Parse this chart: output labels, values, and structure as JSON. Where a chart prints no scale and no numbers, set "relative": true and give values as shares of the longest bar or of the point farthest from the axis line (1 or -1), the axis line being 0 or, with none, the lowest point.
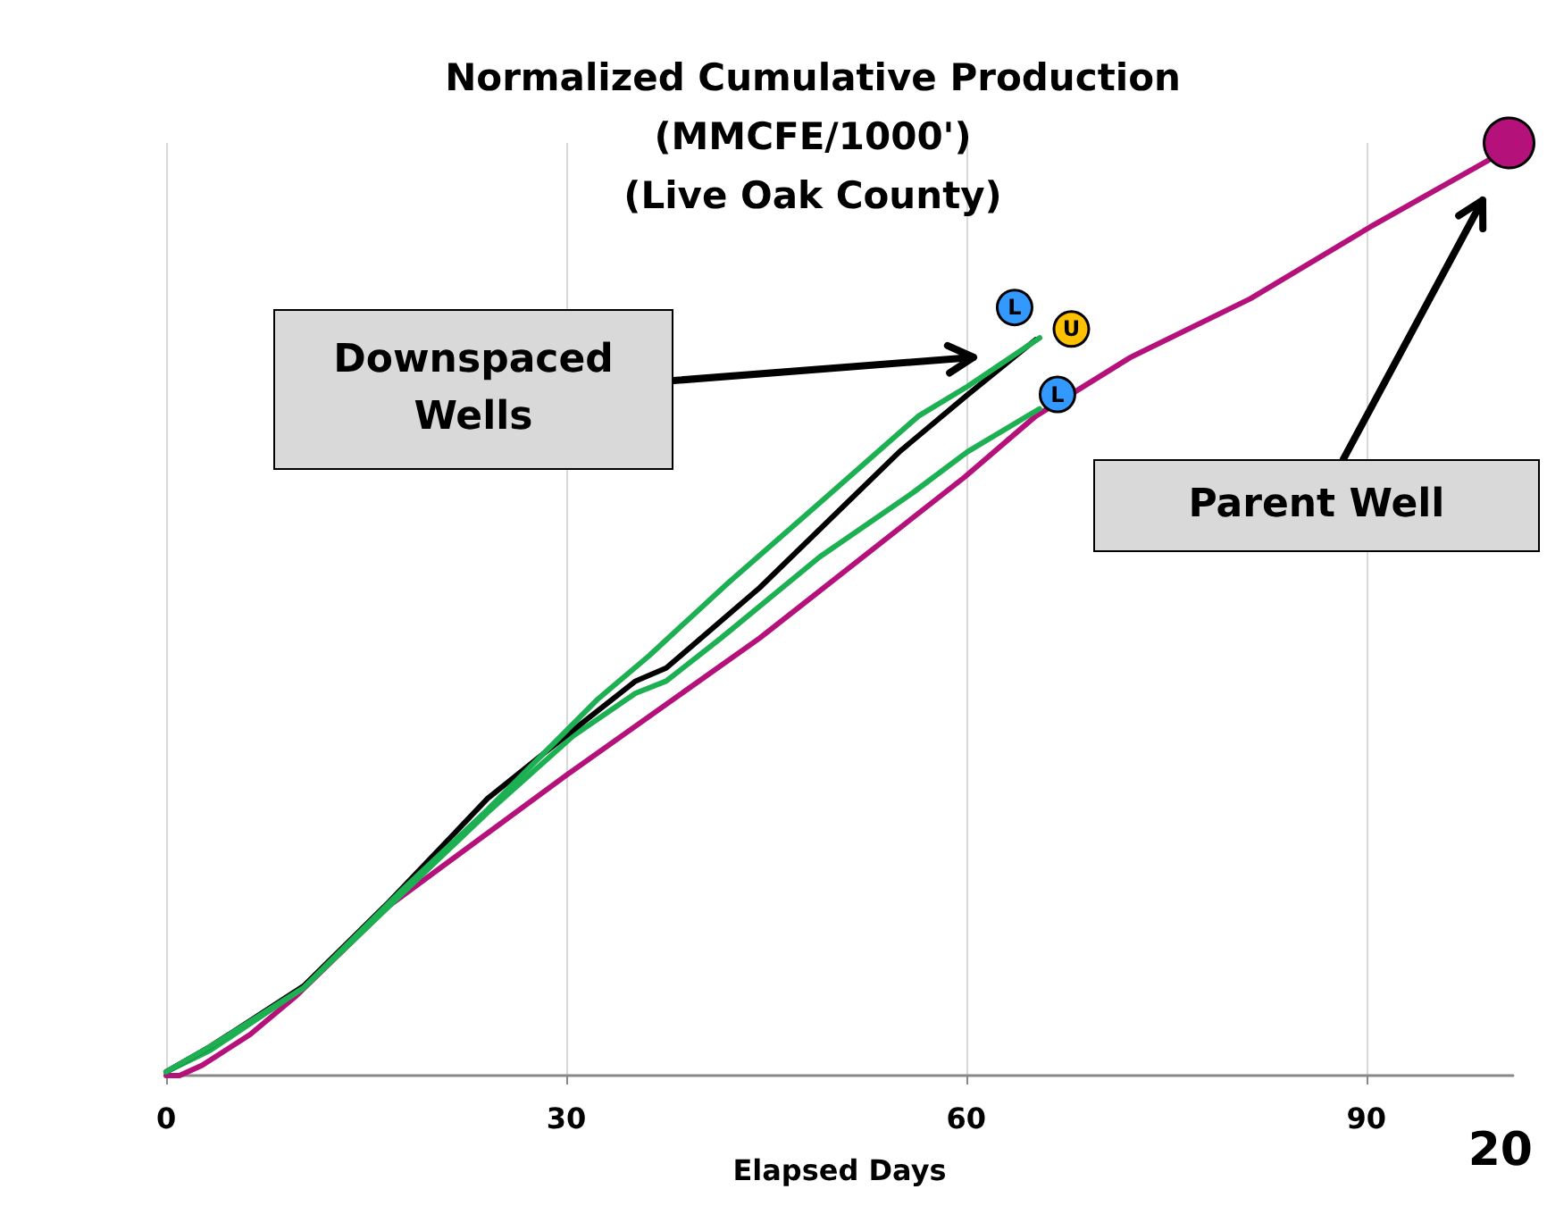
{
  "chart_data": {
    "type": "line",
    "title": "Normalized Cumulative Production\n(MMCFE/1000')\n(Live Oak County)",
    "xlabel": "Elapsed Days",
    "xlim": [
      0,
      101
    ],
    "xticks": [
      0,
      30,
      60,
      90
    ],
    "relative": true,
    "grid": "x",
    "legend": false,
    "marker": "none",
    "line_style": "solid",
    "series": [
      {
        "name": "L",
        "color": "#1db053",
        "x": [
          0,
          3.3,
          10.3,
          17.7,
          24.1,
          32.4,
          36.2,
          42.2,
          48.6,
          56.4,
          60.1,
          65.5
        ],
        "values": [
          0.004,
          0.031,
          0.094,
          0.199,
          0.285,
          0.404,
          0.45,
          0.529,
          0.609,
          0.707,
          0.739,
          0.791
        ]
      },
      {
        "name": "U",
        "color": "#000000",
        "x": [
          0,
          3.3,
          10.3,
          16.7,
          24.1,
          29.6,
          35.2,
          37.5,
          44.5,
          55,
          60.1,
          65.2
        ],
        "values": [
          0.004,
          0.031,
          0.096,
          0.186,
          0.297,
          0.36,
          0.423,
          0.437,
          0.523,
          0.669,
          0.73,
          0.789
        ]
      },
      {
        "name": "L",
        "color": "#1db053",
        "x": [
          0,
          3.3,
          10.3,
          17.7,
          24.1,
          30.5,
          35.2,
          37.5,
          41.6,
          49,
          56,
          60.1,
          65.5
        ],
        "values": [
          0.004,
          0.027,
          0.094,
          0.195,
          0.282,
          0.364,
          0.41,
          0.423,
          0.469,
          0.556,
          0.625,
          0.669,
          0.715
        ]
      },
      {
        "color": "#b5117a",
        "x": [
          0,
          1,
          2.7,
          6.3,
          9.8,
          16.7,
          30,
          44.5,
          59.9,
          65.2,
          72.3,
          81.3,
          90.3,
          99.1,
          100.7
        ],
        "values": [
          0,
          0,
          0.011,
          0.044,
          0.086,
          0.182,
          0.322,
          0.469,
          0.642,
          0.707,
          0.77,
          0.833,
          0.91,
          0.981,
          1
        ]
      }
    ],
    "annotations": [
      "Downspaced\nWells",
      "Parent Well",
      "20"
    ]
  }
}
